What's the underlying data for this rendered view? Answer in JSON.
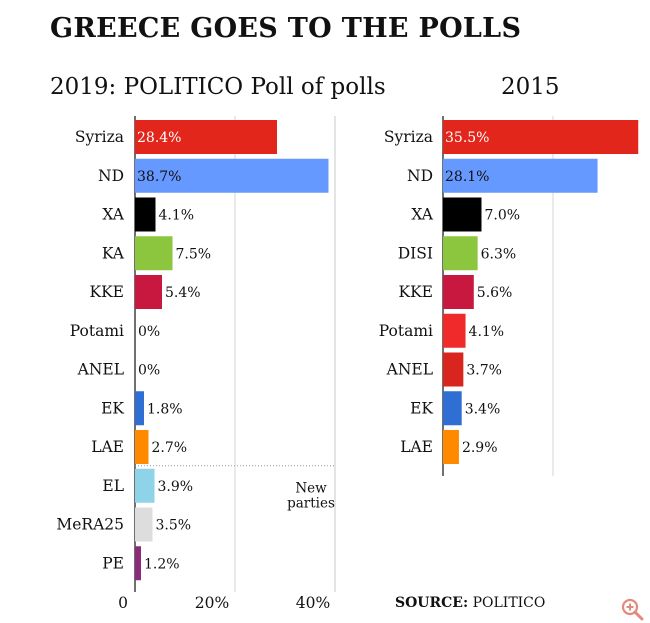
{
  "title": "GREECE GOES TO THE POLLS",
  "source": {
    "label": "SOURCE:",
    "value": "POLITICO"
  },
  "chart_data": [
    {
      "type": "bar",
      "orientation": "horizontal",
      "title": "2019: POLITICO Poll of polls",
      "categories": [
        "Syriza",
        "ND",
        "XA",
        "KA",
        "KKE",
        "Potami",
        "ANEL",
        "EK",
        "LAE",
        "EL",
        "MeRA25",
        "PE"
      ],
      "values": [
        28.4,
        38.7,
        4.1,
        7.5,
        5.4,
        0,
        0,
        1.8,
        2.7,
        3.9,
        3.5,
        1.2
      ],
      "value_labels": [
        "28.4%",
        "38.7%",
        "4.1%",
        "7.5%",
        "5.4%",
        "0%",
        "0%",
        "1.8%",
        "2.7%",
        "3.9%",
        "3.5%",
        "1.2%"
      ],
      "colors": [
        "#e3261b",
        "#6699ff",
        "#000000",
        "#8cc63f",
        "#c8183f",
        "#cccccc",
        "#cccccc",
        "#2f6fd3",
        "#ff8a00",
        "#8ed3e8",
        "#dddddd",
        "#8b2b7a"
      ],
      "xlim": [
        0,
        40
      ],
      "xticks": [
        "0",
        "20%",
        "40%"
      ],
      "grid": true,
      "annotation": {
        "text": [
          "New",
          "parties"
        ],
        "after_category": "LAE"
      }
    },
    {
      "type": "bar",
      "orientation": "horizontal",
      "title": "2015",
      "categories": [
        "Syriza",
        "ND",
        "XA",
        "DISI",
        "KKE",
        "Potami",
        "ANEL",
        "EK",
        "LAE"
      ],
      "values": [
        35.5,
        28.1,
        7.0,
        6.3,
        5.6,
        4.1,
        3.7,
        3.4,
        2.9
      ],
      "value_labels": [
        "35.5%",
        "28.1%",
        "7.0%",
        "6.3%",
        "5.6%",
        "4.1%",
        "3.7%",
        "3.4%",
        "2.9%"
      ],
      "colors": [
        "#e3261b",
        "#6699ff",
        "#000000",
        "#8cc63f",
        "#c8183f",
        "#f02a2a",
        "#d8261e",
        "#2f6fd3",
        "#ff8a00"
      ],
      "xlim": [
        0,
        40
      ],
      "grid": true
    }
  ],
  "icons": {
    "zoom": "zoom-in-icon"
  }
}
